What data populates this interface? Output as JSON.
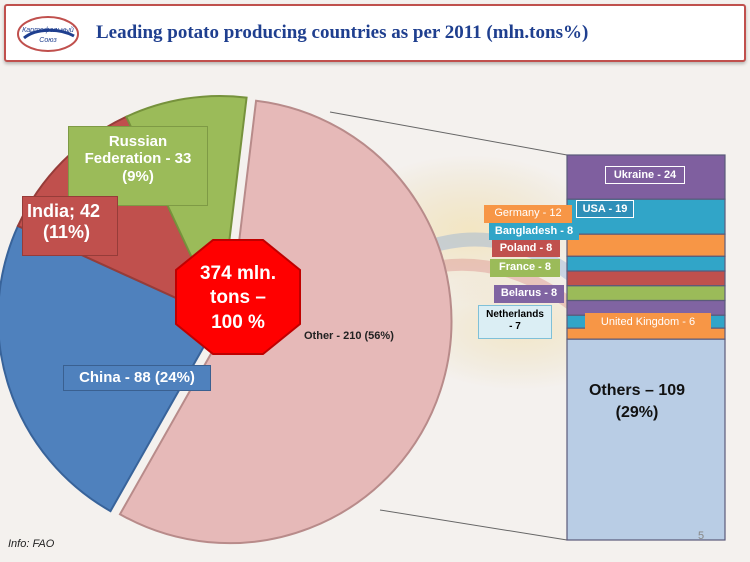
{
  "header": {
    "title": "Leading potato producing countries as per 2011 (mln.tons%)",
    "logo_text_line1": "Картофельный",
    "logo_text_line2": "Союз"
  },
  "colors": {
    "border": "#c0504d",
    "title": "#1f3f8f",
    "pie_other": "#e6b9b8",
    "pie_china": "#4f81bd",
    "pie_india": "#c0504d",
    "pie_russia": "#9bbb59",
    "center_badge": "#ff0000",
    "bar_others": "#b9cde5",
    "bar_ukraine": "#7f5f9f"
  },
  "chart_data": {
    "type": "pie",
    "total_label": "374 mln. tons – 100 %",
    "slices": [
      {
        "name": "Other",
        "value": 210,
        "percent": 56,
        "label": "Other - 210 (56%)"
      },
      {
        "name": "China",
        "value": 88,
        "percent": 24,
        "label": "China - 88 (24%)"
      },
      {
        "name": "India",
        "value": 42,
        "percent": 11,
        "label": "India; 42 (11%)"
      },
      {
        "name": "Russian Federation",
        "value": 33,
        "percent": 9,
        "label": "Russian Federation - 33 (9%)"
      }
    ],
    "breakdown": {
      "of": "Other",
      "type": "stacked-bar",
      "segments": [
        {
          "name": "Ukraine",
          "value": 24,
          "label": "Ukraine - 24"
        },
        {
          "name": "USA",
          "value": 19,
          "label": "USA - 19"
        },
        {
          "name": "Germany",
          "value": 12,
          "label": "Germany - 12"
        },
        {
          "name": "Bangladesh",
          "value": 8,
          "label": "Bangladesh - 8"
        },
        {
          "name": "Poland",
          "value": 8,
          "label": "Poland - 8"
        },
        {
          "name": "France",
          "value": 8,
          "label": "France - 8"
        },
        {
          "name": "Belarus",
          "value": 8,
          "label": "Belarus - 8"
        },
        {
          "name": "Netherlands",
          "value": 7,
          "label": "Netherlands - 7"
        },
        {
          "name": "United Kingdom",
          "value": 6,
          "label": "United Kingdom - 6"
        },
        {
          "name": "Others",
          "value": 109,
          "label": "Others – 109 (29%)"
        }
      ]
    }
  },
  "labels": {
    "russia_line1": "Russian",
    "russia_line2": "Federation - 33",
    "russia_line3": "(9%)",
    "india_line1": "India; 42",
    "india_line2": "(11%)",
    "china": "China - 88 (24%)",
    "other": "Other - 210 (56%)",
    "center_line1": "374 mln.",
    "center_line2": "tons –",
    "center_line3": "100 %",
    "ukraine": "Ukraine - 24",
    "usa": "USA - 19",
    "germany": "Germany - 12",
    "bangladesh": "Bangladesh - 8",
    "poland": "Poland - 8",
    "france": "France - 8",
    "belarus": "Belarus - 8",
    "netherlands_line1": "Netherlands",
    "netherlands_line2": "- 7",
    "uk": "United Kingdom - 6",
    "others_line1": "Others – 109",
    "others_line2": "(29%)"
  },
  "footer": {
    "info": "Info: FAO",
    "slide_number": "5"
  }
}
